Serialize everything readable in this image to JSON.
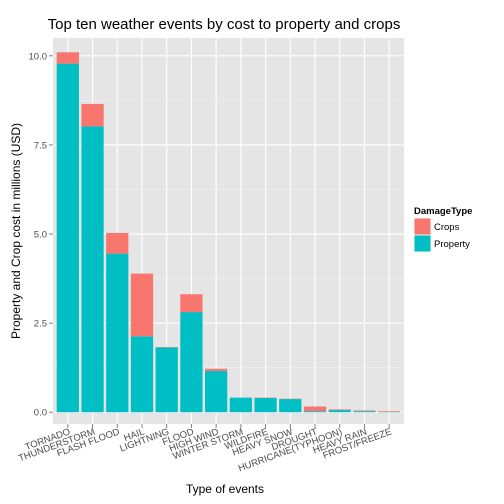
{
  "chart_data": {
    "type": "bar",
    "stacked": true,
    "title": "Top ten weather events by cost to property and crops",
    "xlabel": "Type of events",
    "ylabel": "Property and Crop cost in millions (USD)",
    "categories": [
      "TORNADO",
      "THUNDERSTORM",
      "FLASH FLOOD",
      "HAIL",
      "LIGHTNING",
      "FLOOD",
      "HIGH WIND",
      "WINTER STORM",
      "WILDFIRE",
      "HEAVY SNOW",
      "DROUGHT",
      "HURRICANE(TYPHOON)",
      "HEAVY RAIN",
      "FROST/FREEZE"
    ],
    "series": [
      {
        "name": "Property",
        "color": "#00bfc4",
        "values": [
          9.78,
          8.02,
          4.45,
          2.13,
          1.82,
          2.81,
          1.16,
          0.41,
          0.4,
          0.37,
          0.03,
          0.06,
          0.03,
          0.01
        ]
      },
      {
        "name": "Crops",
        "color": "#f8766d",
        "values": [
          0.32,
          0.63,
          0.58,
          1.76,
          0.01,
          0.5,
          0.06,
          0.0,
          0.01,
          0.01,
          0.13,
          0.02,
          0.02,
          0.02
        ]
      }
    ],
    "ylim": [
      -0.33,
      10.5
    ],
    "yticks": [
      0.0,
      2.5,
      5.0,
      7.5,
      10.0
    ],
    "ytick_labels": [
      "0.0",
      "2.5",
      "5.0",
      "7.5",
      "10.0"
    ],
    "grid": true,
    "panel_background": "#e5e5e5",
    "legend": {
      "title": "DamageType",
      "position": "right",
      "entries": [
        "Crops",
        "Property"
      ]
    }
  }
}
